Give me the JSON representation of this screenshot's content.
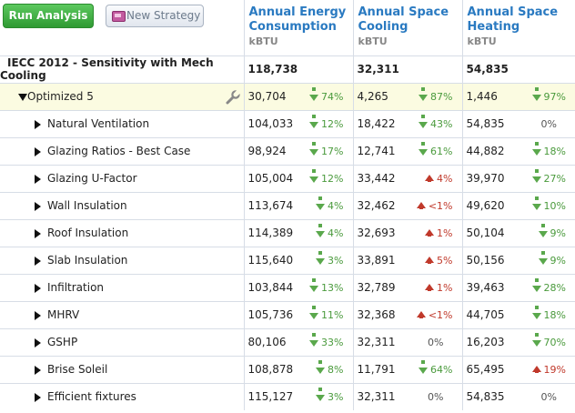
{
  "toolbar": {
    "run_label": "Run Analysis",
    "new_strategy_label": "New Strategy"
  },
  "columns": [
    {
      "title": "Annual Energy Consumption",
      "unit": "kBTU"
    },
    {
      "title": "Annual Space Cooling",
      "unit": "kBTU"
    },
    {
      "title": "Annual Space Heating",
      "unit": "kBTU"
    }
  ],
  "icons": {
    "new_strategy": "strategy-icon",
    "options": "wrench-icon",
    "expand": "triangle-right-icon",
    "collapse": "triangle-down-icon"
  },
  "colors": {
    "decrease": "#5aa84c",
    "increase": "#c0392b",
    "header": "#2a7ac1",
    "highlight_row": "#fbfbe1"
  },
  "rows": [
    {
      "name": "IECC 2012 - Sensitivity with Mech Cooling",
      "kind": "base",
      "energy": "118,738",
      "energy_chg": "",
      "energy_dir": "none",
      "cooling": "32,311",
      "cooling_chg": "",
      "cooling_dir": "none",
      "heating": "54,835",
      "heating_chg": "",
      "heating_dir": "none"
    },
    {
      "name": "Optimized 5",
      "kind": "opt",
      "energy": "30,704",
      "energy_chg": "74%",
      "energy_dir": "down",
      "cooling": "4,265",
      "cooling_chg": "87%",
      "cooling_dir": "down",
      "heating": "1,446",
      "heating_chg": "97%",
      "heating_dir": "down"
    },
    {
      "name": "Natural Ventilation",
      "kind": "sub",
      "energy": "104,033",
      "energy_chg": "12%",
      "energy_dir": "down",
      "cooling": "18,422",
      "cooling_chg": "43%",
      "cooling_dir": "down",
      "heating": "54,835",
      "heating_chg": "0%",
      "heating_dir": "zero"
    },
    {
      "name": "Glazing Ratios - Best Case",
      "kind": "sub",
      "energy": "98,924",
      "energy_chg": "17%",
      "energy_dir": "down",
      "cooling": "12,741",
      "cooling_chg": "61%",
      "cooling_dir": "down",
      "heating": "44,882",
      "heating_chg": "18%",
      "heating_dir": "down"
    },
    {
      "name": "Glazing U-Factor",
      "kind": "sub",
      "energy": "105,004",
      "energy_chg": "12%",
      "energy_dir": "down",
      "cooling": "33,442",
      "cooling_chg": "4%",
      "cooling_dir": "up",
      "heating": "39,970",
      "heating_chg": "27%",
      "heating_dir": "down"
    },
    {
      "name": "Wall Insulation",
      "kind": "sub",
      "energy": "113,674",
      "energy_chg": "4%",
      "energy_dir": "down",
      "cooling": "32,462",
      "cooling_chg": "<1%",
      "cooling_dir": "up",
      "heating": "49,620",
      "heating_chg": "10%",
      "heating_dir": "down"
    },
    {
      "name": "Roof Insulation",
      "kind": "sub",
      "energy": "114,389",
      "energy_chg": "4%",
      "energy_dir": "down",
      "cooling": "32,693",
      "cooling_chg": "1%",
      "cooling_dir": "up",
      "heating": "50,104",
      "heating_chg": "9%",
      "heating_dir": "down"
    },
    {
      "name": "Slab Insulation",
      "kind": "sub",
      "energy": "115,640",
      "energy_chg": "3%",
      "energy_dir": "down",
      "cooling": "33,891",
      "cooling_chg": "5%",
      "cooling_dir": "up",
      "heating": "50,156",
      "heating_chg": "9%",
      "heating_dir": "down"
    },
    {
      "name": "Infiltration",
      "kind": "sub",
      "energy": "103,844",
      "energy_chg": "13%",
      "energy_dir": "down",
      "cooling": "32,789",
      "cooling_chg": "1%",
      "cooling_dir": "up",
      "heating": "39,463",
      "heating_chg": "28%",
      "heating_dir": "down"
    },
    {
      "name": "MHRV",
      "kind": "sub",
      "energy": "105,736",
      "energy_chg": "11%",
      "energy_dir": "down",
      "cooling": "32,368",
      "cooling_chg": "<1%",
      "cooling_dir": "up",
      "heating": "44,705",
      "heating_chg": "18%",
      "heating_dir": "down"
    },
    {
      "name": "GSHP",
      "kind": "sub",
      "energy": "80,106",
      "energy_chg": "33%",
      "energy_dir": "down",
      "cooling": "32,311",
      "cooling_chg": "0%",
      "cooling_dir": "zero",
      "heating": "16,203",
      "heating_chg": "70%",
      "heating_dir": "down"
    },
    {
      "name": "Brise Soleil",
      "kind": "sub",
      "energy": "108,878",
      "energy_chg": "8%",
      "energy_dir": "down",
      "cooling": "11,791",
      "cooling_chg": "64%",
      "cooling_dir": "down",
      "heating": "65,495",
      "heating_chg": "19%",
      "heating_dir": "up"
    },
    {
      "name": "Efficient fixtures",
      "kind": "sub",
      "energy": "115,127",
      "energy_chg": "3%",
      "energy_dir": "down",
      "cooling": "32,311",
      "cooling_chg": "0%",
      "cooling_dir": "zero",
      "heating": "54,835",
      "heating_chg": "0%",
      "heating_dir": "zero"
    }
  ]
}
